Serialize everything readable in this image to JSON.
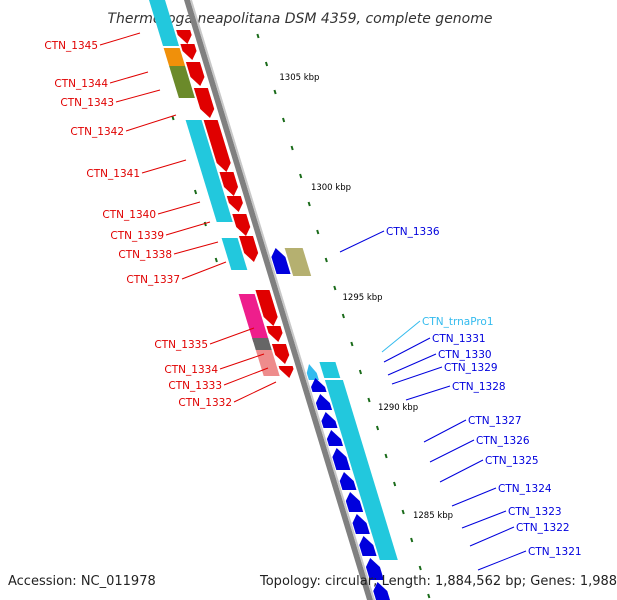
{
  "title": "Thermotoga neapolitana DSM 4359, complete genome",
  "accession": "Accession: NC_011978",
  "topology": "Topology: circular; Length: 1,884,562 bp; Genes: 1,988",
  "colors": {
    "backbone": "#808080",
    "forward_gene": "#e00000",
    "reverse_gene": "#0000dd",
    "cds_cyan": "#22c8dd",
    "trna_light_blue": "#33bbee",
    "tick_green": "#1a6b1a",
    "orange": "#f0900a",
    "olive": "#6b8a2a",
    "khaki": "#b5b070",
    "magenta": "#ee1e8c",
    "pink": "#ee8c8c",
    "grey": "#666666"
  },
  "ticks": [
    {
      "label": "1305 kbp"
    },
    {
      "label": "1300 kbp"
    },
    {
      "label": "1295 kbp"
    },
    {
      "label": "1290 kbp"
    },
    {
      "label": "1285 kbp"
    }
  ],
  "left_labels": [
    {
      "name": "CTN_1345"
    },
    {
      "name": "CTN_1344"
    },
    {
      "name": "CTN_1343"
    },
    {
      "name": "CTN_1342"
    },
    {
      "name": "CTN_1341"
    },
    {
      "name": "CTN_1340"
    },
    {
      "name": "CTN_1339"
    },
    {
      "name": "CTN_1338"
    },
    {
      "name": "CTN_1337"
    },
    {
      "name": "CTN_1335"
    },
    {
      "name": "CTN_1334"
    },
    {
      "name": "CTN_1333"
    },
    {
      "name": "CTN_1332"
    }
  ],
  "right_labels": [
    {
      "name": "CTN_1336"
    },
    {
      "name": "CTN_trnaPro1"
    },
    {
      "name": "CTN_1331"
    },
    {
      "name": "CTN_1330"
    },
    {
      "name": "CTN_1329"
    },
    {
      "name": "CTN_1328"
    },
    {
      "name": "CTN_1327"
    },
    {
      "name": "CTN_1326"
    },
    {
      "name": "CTN_1325"
    },
    {
      "name": "CTN_1324"
    },
    {
      "name": "CTN_1323"
    },
    {
      "name": "CTN_1322"
    },
    {
      "name": "CTN_1321"
    }
  ]
}
